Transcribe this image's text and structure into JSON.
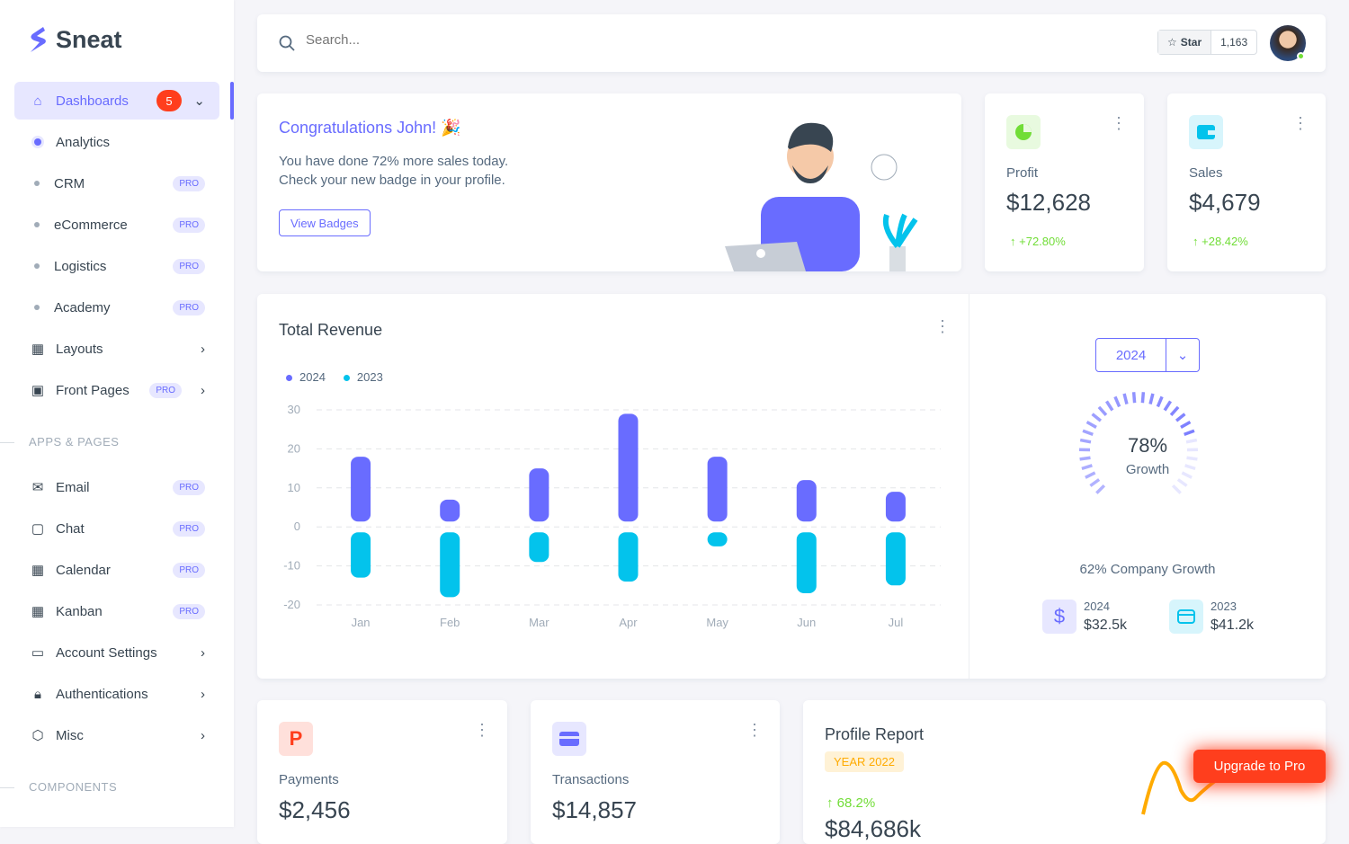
{
  "brand": "Sneat",
  "sidebar": {
    "items": [
      {
        "label": "Dashboards",
        "badge": "5",
        "active": true
      },
      {
        "label": "Analytics",
        "active": true
      },
      {
        "label": "CRM",
        "pro": "PRO"
      },
      {
        "label": "eCommerce",
        "pro": "PRO"
      },
      {
        "label": "Logistics",
        "pro": "PRO"
      },
      {
        "label": "Academy",
        "pro": "PRO"
      },
      {
        "label": "Layouts"
      },
      {
        "label": "Front Pages",
        "pro": "PRO"
      }
    ],
    "section1": "APPS & PAGES",
    "apps": [
      {
        "label": "Email",
        "pro": "PRO"
      },
      {
        "label": "Chat",
        "pro": "PRO"
      },
      {
        "label": "Calendar",
        "pro": "PRO"
      },
      {
        "label": "Kanban",
        "pro": "PRO"
      },
      {
        "label": "Account Settings"
      },
      {
        "label": "Authentications"
      },
      {
        "label": "Misc"
      }
    ],
    "section2": "COMPONENTS"
  },
  "topbar": {
    "search_placeholder": "Search...",
    "star_label": "Star",
    "star_count": "1,163"
  },
  "welcome": {
    "title": "Congratulations John! 🎉",
    "line1": "You have done 72% more sales today.",
    "line2": "Check your new badge in your profile.",
    "button": "View Badges"
  },
  "profit": {
    "label": "Profit",
    "value": "$12,628",
    "change": "+72.80%"
  },
  "sales": {
    "label": "Sales",
    "value": "$4,679",
    "change": "+28.42%"
  },
  "revenue": {
    "title": "Total Revenue",
    "year_select": "2024",
    "growth_pct": "78%",
    "growth_label": "Growth",
    "growth_value": 78,
    "company_growth": "62% Company Growth",
    "stats": [
      {
        "year": "2024",
        "value": "$32.5k"
      },
      {
        "year": "2023",
        "value": "$41.2k"
      }
    ]
  },
  "chart_data": {
    "type": "bar",
    "categories": [
      "Jan",
      "Feb",
      "Mar",
      "Apr",
      "May",
      "Jun",
      "Jul"
    ],
    "series": [
      {
        "name": "2024",
        "values": [
          18,
          7,
          15,
          29,
          18,
          12,
          9
        ]
      },
      {
        "name": "2023",
        "values": [
          -13,
          -18,
          -9,
          -14,
          -5,
          -17,
          -15
        ]
      }
    ],
    "yticks": [
      "30",
      "20",
      "10",
      "0",
      "-10",
      "-20"
    ],
    "ylim": [
      -20,
      30
    ],
    "grid": true,
    "legend": "top-left",
    "colors": [
      "#696cff",
      "#03c3ec"
    ]
  },
  "payments": {
    "label": "Payments",
    "value": "$2,456"
  },
  "transactions": {
    "label": "Transactions",
    "value": "$14,857"
  },
  "profile_report": {
    "title": "Profile Report",
    "badge": "YEAR 2022",
    "change": "68.2%",
    "value": "$84,686k"
  },
  "upgrade": "Upgrade to Pro"
}
